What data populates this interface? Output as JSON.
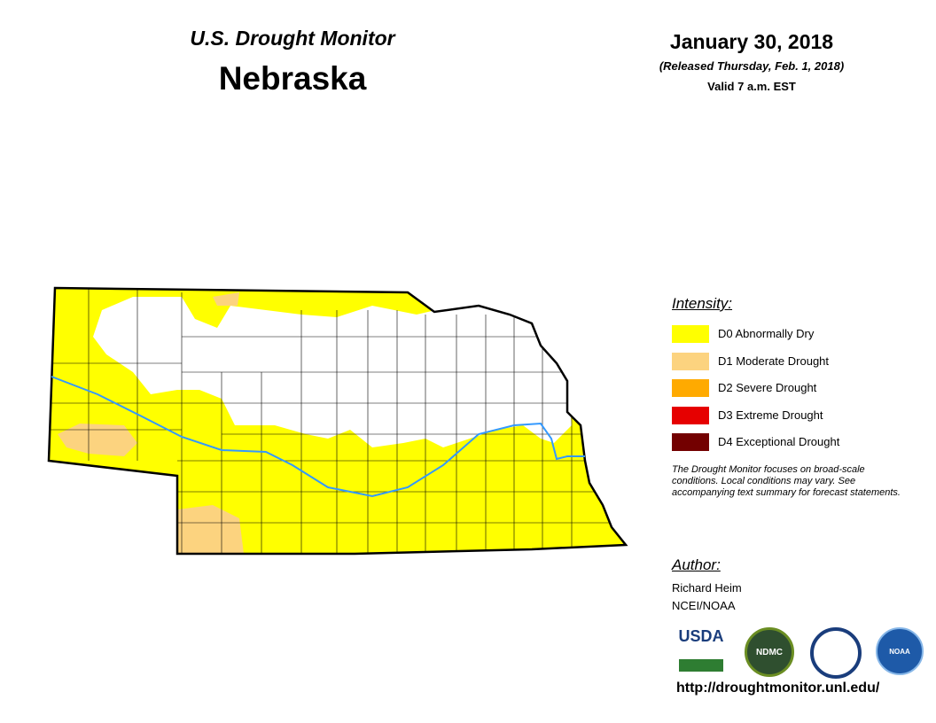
{
  "header": {
    "title": "U.S. Drought Monitor",
    "state": "Nebraska",
    "date": "January 30, 2018",
    "released": "(Released Thursday, Feb. 1, 2018)",
    "valid": "Valid 7 a.m. EST"
  },
  "legend": {
    "title": "Intensity:",
    "items": [
      {
        "label": "D0 Abnormally Dry",
        "color": "#ffff00"
      },
      {
        "label": "D1 Moderate Drought",
        "color": "#fcd37f"
      },
      {
        "label": "D2 Severe Drought",
        "color": "#ffaa00"
      },
      {
        "label": "D3 Extreme Drought",
        "color": "#e60000"
      },
      {
        "label": "D4 Exceptional Drought",
        "color": "#730000"
      }
    ]
  },
  "note": "The Drought Monitor focuses on broad-scale conditions. Local conditions may vary. See accompanying text summary for forecast statements.",
  "author": {
    "title": "Author:",
    "name": "Richard Heim",
    "org": "NCEI/NOAA"
  },
  "logos": [
    "USDA",
    "NDMC",
    "NOAA"
  ],
  "url": "http://droughtmonitor.unl.edu/"
}
